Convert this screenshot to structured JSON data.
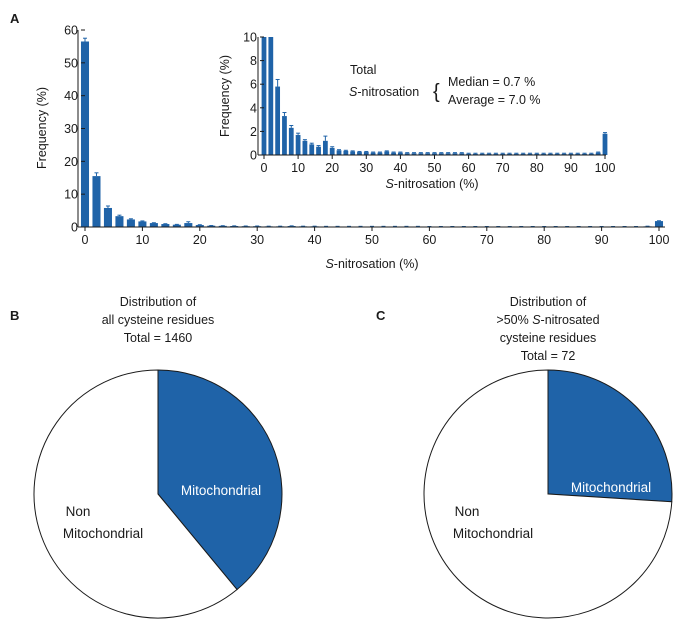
{
  "colors": {
    "bar": "#1f63a8",
    "slice_mito": "#1f63a8",
    "slice_non": "#ffffff",
    "outline": "#1a1a1a",
    "mito_text": "#ffffff"
  },
  "panels": {
    "a": "A",
    "b": "B",
    "c": "C"
  },
  "chart_data": [
    {
      "id": "A",
      "type": "bar",
      "xlabel_italic": "S",
      "xlabel_rest": "-nitrosation (%)",
      "ylabel": "Frequency (%)",
      "xlim": [
        0,
        100
      ],
      "ylim": [
        0,
        60
      ],
      "xticks": [
        0,
        10,
        20,
        30,
        40,
        50,
        60,
        70,
        80,
        90,
        100
      ],
      "yticks": [
        0,
        10,
        20,
        30,
        40,
        50,
        60
      ],
      "x": [
        0,
        2,
        4,
        6,
        8,
        10,
        12,
        14,
        16,
        18,
        20,
        22,
        24,
        26,
        28,
        30,
        32,
        34,
        36,
        38,
        40,
        42,
        44,
        46,
        48,
        50,
        52,
        54,
        56,
        58,
        60,
        62,
        64,
        66,
        68,
        70,
        72,
        74,
        76,
        78,
        80,
        82,
        84,
        86,
        88,
        90,
        92,
        94,
        96,
        98,
        100
      ],
      "values": [
        56.5,
        15.5,
        5.8,
        3.3,
        2.3,
        1.7,
        1.2,
        0.9,
        0.7,
        1.2,
        0.6,
        0.4,
        0.35,
        0.3,
        0.25,
        0.25,
        0.2,
        0.2,
        0.3,
        0.2,
        0.2,
        0.15,
        0.15,
        0.15,
        0.15,
        0.15,
        0.15,
        0.15,
        0.15,
        0.15,
        0.1,
        0.1,
        0.1,
        0.1,
        0.1,
        0.1,
        0.1,
        0.1,
        0.1,
        0.1,
        0.1,
        0.1,
        0.1,
        0.1,
        0.1,
        0.1,
        0.1,
        0.1,
        0.1,
        0.2,
        1.8
      ],
      "errors": [
        1.0,
        1.0,
        0.6,
        0.3,
        0.2,
        0.15,
        0.1,
        0.1,
        0.1,
        0.4,
        0.1,
        0.05,
        0.05,
        0.05,
        0.05,
        0.05,
        0.05,
        0.05,
        0.05,
        0.05,
        0.05,
        0.05,
        0.05,
        0.05,
        0.05,
        0.05,
        0.05,
        0.05,
        0.05,
        0.05,
        0.05,
        0.05,
        0.05,
        0.05,
        0.05,
        0.05,
        0.05,
        0.05,
        0.05,
        0.05,
        0.05,
        0.05,
        0.05,
        0.05,
        0.05,
        0.05,
        0.05,
        0.05,
        0.05,
        0.05,
        0.1
      ],
      "inset": {
        "type": "bar",
        "xlabel_italic": "S",
        "xlabel_rest": "-nitrosation (%)",
        "ylabel": "Frequency (%)",
        "xlim": [
          0,
          100
        ],
        "ylim": [
          0,
          10
        ],
        "xticks": [
          0,
          10,
          20,
          30,
          40,
          50,
          60,
          70,
          80,
          90,
          100
        ],
        "yticks": [
          0,
          2,
          4,
          6,
          8,
          10
        ],
        "note_line1": "Total",
        "note_line2_italic": "S",
        "note_line2_rest": "-nitrosation",
        "brace": "{",
        "median": "Median = 0.7 %",
        "average": "Average = 7.0 %"
      }
    },
    {
      "id": "B",
      "type": "pie",
      "title_lines": [
        "Distribution of",
        "all cysteine residues",
        "Total = 1460"
      ],
      "slices": [
        {
          "label": "Mitochondrial",
          "value": 39
        },
        {
          "label_lines": [
            "Non",
            "Mitochondrial"
          ],
          "value": 61
        }
      ]
    },
    {
      "id": "C",
      "type": "pie",
      "title_line1": "Distribution of",
      "title_line2_prefix": ">50% ",
      "title_line2_italic": "S",
      "title_line2_rest": "-nitrosated",
      "title_line3": "cysteine residues",
      "title_line4": "Total = 72",
      "slices": [
        {
          "label": "Mitochondrial",
          "value": 26
        },
        {
          "label_lines": [
            "Non",
            "Mitochondrial"
          ],
          "value": 74
        }
      ]
    }
  ]
}
